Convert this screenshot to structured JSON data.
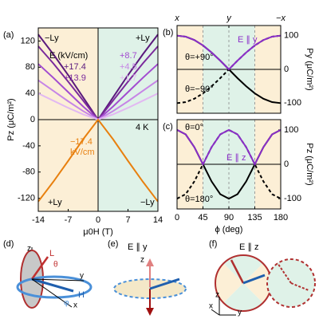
{
  "chart_data": [
    {
      "type": "line",
      "panel_label": "(a)",
      "xlim": [
        -14,
        14
      ],
      "xticks": [
        -14,
        -7,
        0,
        7,
        14
      ],
      "xlabel": "μ0H (T)",
      "ylim": [
        -140,
        140
      ],
      "yticks": [
        -120,
        -80,
        -40,
        0,
        40,
        80,
        120
      ],
      "ylabel": "Pz (μC/m²)",
      "y_side": "left",
      "bands": [
        {
          "from": -14,
          "to": 0,
          "color": "#fcefd6"
        },
        {
          "from": 0,
          "to": 14,
          "color": "#dff2e8"
        }
      ],
      "legend_title": "E (kV/cm)",
      "x": [
        -14,
        -10.5,
        -7,
        -3.5,
        0,
        3.5,
        7,
        10.5,
        14
      ],
      "series": [
        {
          "name": "+17.4",
          "color": "#5b1a7d",
          "values": [
            130,
            100,
            68,
            34,
            0,
            34,
            68,
            100,
            130
          ]
        },
        {
          "name": "+13.9",
          "color": "#7b2a9c",
          "values": [
            112,
            86,
            58,
            29,
            0,
            29,
            58,
            86,
            112
          ]
        },
        {
          "name": "+8.7",
          "color": "#a24bd0",
          "values": [
            85,
            64,
            42,
            20,
            0,
            20,
            42,
            64,
            85
          ]
        },
        {
          "name": "+4.5",
          "color": "#c685e6",
          "values": [
            60,
            44,
            28,
            13,
            0,
            13,
            28,
            44,
            60
          ]
        },
        {
          "name": "+1.7",
          "color": "#e2b8f2",
          "values": [
            40,
            29,
            18,
            8,
            0,
            8,
            18,
            29,
            40
          ]
        },
        {
          "name": "−17.4",
          "color": "#e8800f",
          "values": [
            -125,
            -95,
            -63,
            -30,
            0,
            -30,
            -63,
            -95,
            -125
          ]
        }
      ],
      "annotations": [
        "−Ly",
        "+Ly",
        "4 K",
        "kV/cm",
        "+Ly",
        "−Ly"
      ]
    },
    {
      "type": "line",
      "panel_label": "(b)",
      "xlim": [
        0,
        180
      ],
      "top_ticks": [
        {
          "value": 0,
          "label": "x"
        },
        {
          "value": 90,
          "label": "y"
        },
        {
          "value": 180,
          "label": "−x"
        }
      ],
      "ylim": [
        -130,
        130
      ],
      "yticks": [
        -100,
        0,
        100
      ],
      "ylabel": "Py (μC/m²)",
      "y_side": "right",
      "vlines": [
        45,
        90,
        135
      ],
      "bands": [
        {
          "from": 0,
          "to": 45,
          "color": "#fcefd6"
        },
        {
          "from": 45,
          "to": 135,
          "color": "#dff2e8"
        },
        {
          "from": 135,
          "to": 180,
          "color": "#fcefd6"
        }
      ],
      "x": [
        0,
        15,
        30,
        45,
        60,
        75,
        90,
        105,
        120,
        135,
        150,
        165,
        180
      ],
      "series": [
        {
          "name": "θ=+90°",
          "color": "#000000",
          "dash": false,
          "values": [
            100,
            97,
            87,
            71,
            50,
            26,
            0,
            -26,
            -50,
            -71,
            -87,
            -97,
            -100
          ]
        },
        {
          "name": "θ=−90°",
          "color": "#000000",
          "dash": true,
          "values": [
            -100,
            -97,
            -87,
            -71,
            -50,
            -26,
            0,
            26,
            50,
            71,
            87,
            97,
            100
          ]
        },
        {
          "name": "E ∥ y",
          "color": "#8b2fc9",
          "dash": false,
          "values": [
            100,
            97,
            87,
            71,
            50,
            26,
            0,
            26,
            50,
            71,
            87,
            97,
            100
          ]
        }
      ]
    },
    {
      "type": "line",
      "panel_label": "(c)",
      "xlim": [
        0,
        180
      ],
      "xticks": [
        0,
        45,
        90,
        135,
        180
      ],
      "xlabel": "ϕ (deg)",
      "ylim": [
        -130,
        130
      ],
      "yticks": [
        -100,
        0,
        100
      ],
      "ylabel": "Pz (μC/m²)",
      "y_side": "right",
      "vlines": [
        45,
        90,
        135
      ],
      "bands": [
        {
          "from": 0,
          "to": 45,
          "color": "#fcefd6"
        },
        {
          "from": 45,
          "to": 135,
          "color": "#dff2e8"
        },
        {
          "from": 135,
          "to": 180,
          "color": "#fcefd6"
        }
      ],
      "x": [
        0,
        15,
        30,
        45,
        60,
        75,
        90,
        105,
        120,
        135,
        150,
        165,
        180
      ],
      "series": [
        {
          "name": "θ=0°",
          "color": "#000000",
          "dash": false,
          "values": [
            100,
            87,
            50,
            0,
            -50,
            -87,
            -100,
            -87,
            -50,
            0,
            50,
            87,
            100
          ]
        },
        {
          "name": "θ=180°",
          "color": "#000000",
          "dash": true,
          "values": [
            -100,
            -87,
            -50,
            0,
            50,
            87,
            100,
            87,
            50,
            0,
            -50,
            -87,
            -100
          ]
        },
        {
          "name": "E ∥ z",
          "color": "#8b2fc9",
          "dash": false,
          "values": [
            100,
            87,
            50,
            0,
            50,
            87,
            100,
            87,
            50,
            0,
            50,
            87,
            100
          ]
        }
      ]
    }
  ],
  "diagram_text": {
    "d": [
      "(d)",
      "z",
      "L",
      "θ",
      "y",
      "x",
      "H",
      "φ"
    ],
    "e": [
      "(e)",
      "E ∥ y",
      "z"
    ],
    "f": [
      "(f)",
      "E ∥ z",
      "z",
      "y",
      "x"
    ]
  }
}
